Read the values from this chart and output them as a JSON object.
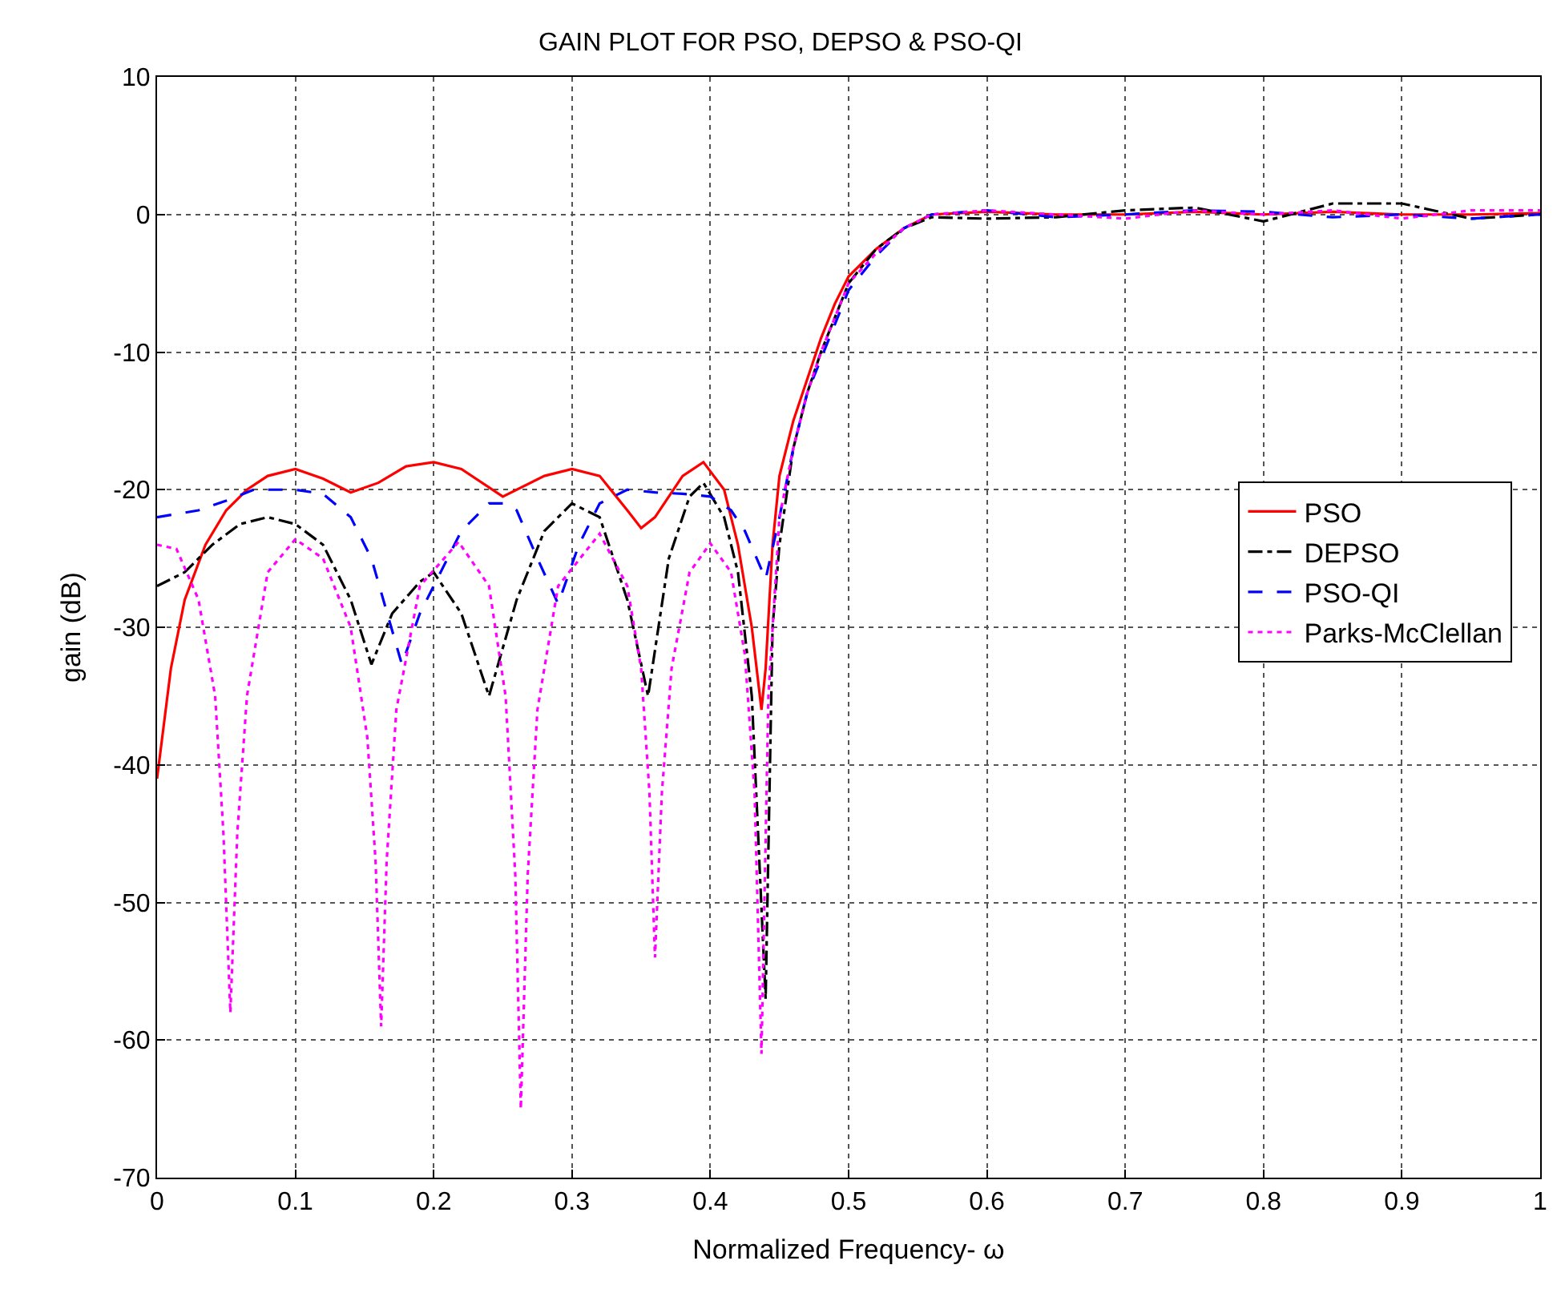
{
  "chart_data": {
    "type": "line",
    "title": "GAIN PLOT FOR PSO, DEPSO & PSO-QI",
    "xlabel": "Normalized Frequency- ω",
    "ylabel": "gain (dB)",
    "xlim": [
      0,
      1
    ],
    "ylim": [
      -70,
      10
    ],
    "xticks": [
      0,
      0.1,
      0.2,
      0.3,
      0.4,
      0.5,
      0.6,
      0.7,
      0.8,
      0.9,
      1
    ],
    "yticks": [
      -70,
      -60,
      -50,
      -40,
      -30,
      -20,
      -10,
      0,
      10
    ],
    "grid": true,
    "legend": "right",
    "marker": "none",
    "series": [
      {
        "name": "PSO",
        "color": "#ff0000",
        "line_style": "solid",
        "x": [
          0,
          0.01,
          0.02,
          0.035,
          0.05,
          0.065,
          0.08,
          0.1,
          0.12,
          0.14,
          0.16,
          0.18,
          0.2,
          0.22,
          0.25,
          0.28,
          0.3,
          0.32,
          0.34,
          0.35,
          0.36,
          0.38,
          0.395,
          0.41,
          0.42,
          0.43,
          0.437,
          0.44,
          0.445,
          0.45,
          0.46,
          0.47,
          0.48,
          0.49,
          0.5,
          0.52,
          0.54,
          0.56,
          0.6,
          0.65,
          0.7,
          0.75,
          0.8,
          0.85,
          0.9,
          0.95,
          1
        ],
        "values": [
          -41,
          -33,
          -28,
          -24,
          -21.5,
          -20,
          -19,
          -18.5,
          -19.2,
          -20.2,
          -19.5,
          -18.3,
          -18,
          -18.5,
          -20.5,
          -19,
          -18.5,
          -19,
          -21.5,
          -22.8,
          -22,
          -19,
          -18,
          -20,
          -24,
          -30,
          -36,
          -33,
          -24,
          -19,
          -15,
          -12,
          -9,
          -6.5,
          -4.5,
          -2.5,
          -1,
          0,
          0.2,
          0,
          0,
          0.2,
          0,
          0.2,
          0,
          0,
          0.1
        ]
      },
      {
        "name": "DEPSO",
        "color": "#000000",
        "line_style": "dashdot",
        "x": [
          0,
          0.02,
          0.04,
          0.06,
          0.08,
          0.1,
          0.12,
          0.14,
          0.155,
          0.17,
          0.19,
          0.2,
          0.22,
          0.24,
          0.26,
          0.28,
          0.3,
          0.32,
          0.34,
          0.355,
          0.37,
          0.385,
          0.395,
          0.41,
          0.42,
          0.43,
          0.44,
          0.445,
          0.45,
          0.46,
          0.47,
          0.48,
          0.49,
          0.5,
          0.52,
          0.54,
          0.56,
          0.6,
          0.65,
          0.7,
          0.75,
          0.8,
          0.85,
          0.9,
          0.95,
          1
        ],
        "values": [
          -27,
          -26,
          -24,
          -22.5,
          -22,
          -22.5,
          -24,
          -28,
          -32.7,
          -29,
          -26.7,
          -26,
          -29,
          -35,
          -28,
          -23,
          -21,
          -22,
          -28,
          -35,
          -25,
          -20.5,
          -19.5,
          -22,
          -26,
          -35,
          -57,
          -30,
          -24,
          -17,
          -13,
          -10,
          -7.5,
          -5,
          -2.5,
          -1,
          -0.2,
          -0.3,
          -0.2,
          0.3,
          0.5,
          -0.5,
          0.8,
          0.8,
          -0.3,
          0
        ]
      },
      {
        "name": "PSO-QI",
        "color": "#0000ff",
        "line_style": "dashed",
        "x": [
          0,
          0.03,
          0.05,
          0.07,
          0.1,
          0.12,
          0.14,
          0.155,
          0.165,
          0.177,
          0.19,
          0.2,
          0.22,
          0.24,
          0.25,
          0.26,
          0.275,
          0.29,
          0.305,
          0.32,
          0.34,
          0.36,
          0.38,
          0.4,
          0.415,
          0.425,
          0.44,
          0.45,
          0.46,
          0.47,
          0.48,
          0.49,
          0.5,
          0.52,
          0.54,
          0.56,
          0.6,
          0.65,
          0.7,
          0.75,
          0.8,
          0.85,
          0.9,
          0.95,
          1
        ],
        "values": [
          -22,
          -21.5,
          -20.8,
          -20,
          -20,
          -20.3,
          -22,
          -25,
          -28.5,
          -32.7,
          -29,
          -27,
          -23,
          -21,
          -21,
          -21.5,
          -25,
          -28.3,
          -24,
          -21,
          -20,
          -20.2,
          -20.3,
          -20.5,
          -21.5,
          -23,
          -26.5,
          -22,
          -17,
          -13,
          -10.5,
          -8,
          -5.5,
          -3,
          -1,
          0,
          0.3,
          -0.2,
          0,
          0.3,
          0.2,
          -0.2,
          0,
          -0.3,
          0
        ]
      },
      {
        "name": "Parks-McClellan",
        "color": "#ff00ff",
        "line_style": "dotted",
        "x": [
          0,
          0.014,
          0.03,
          0.042,
          0.048,
          0.053,
          0.058,
          0.065,
          0.08,
          0.1,
          0.12,
          0.14,
          0.152,
          0.158,
          0.162,
          0.166,
          0.173,
          0.19,
          0.218,
          0.24,
          0.252,
          0.259,
          0.263,
          0.268,
          0.275,
          0.29,
          0.32,
          0.34,
          0.35,
          0.356,
          0.36,
          0.365,
          0.372,
          0.385,
          0.4,
          0.415,
          0.425,
          0.432,
          0.437,
          0.442,
          0.45,
          0.46,
          0.47,
          0.48,
          0.49,
          0.5,
          0.52,
          0.54,
          0.56,
          0.6,
          0.65,
          0.7,
          0.75,
          0.8,
          0.85,
          0.9,
          0.95,
          1
        ],
        "values": [
          -24,
          -24.3,
          -28,
          -35,
          -45,
          -58,
          -45,
          -35,
          -26,
          -23.6,
          -25,
          -30,
          -38,
          -47,
          -59,
          -47,
          -36,
          -27,
          -23.8,
          -27,
          -35,
          -48,
          -65,
          -48,
          -36,
          -27,
          -23.2,
          -27,
          -33,
          -42,
          -54,
          -42,
          -33,
          -26,
          -23.9,
          -26,
          -32,
          -42,
          -61,
          -35,
          -22,
          -17,
          -13,
          -10,
          -7.5,
          -5,
          -2.8,
          -1,
          0,
          0.3,
          0,
          -0.3,
          0.3,
          0,
          0.3,
          -0.3,
          0.3,
          0.3
        ]
      }
    ]
  }
}
